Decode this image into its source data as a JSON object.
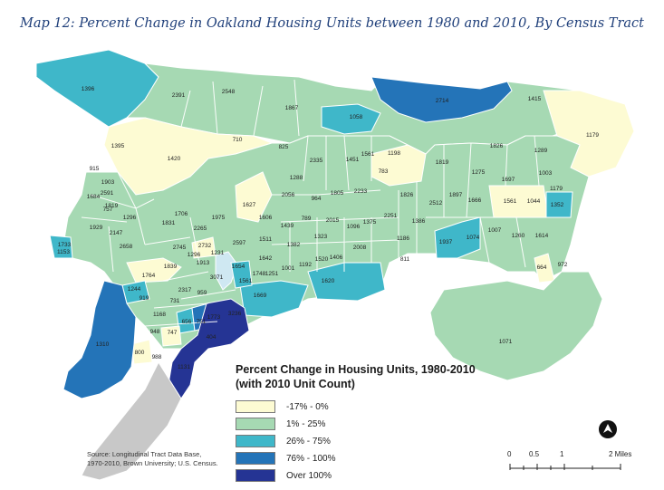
{
  "title": "Map 12: Percent Change in Oakland Housing Units between 1980 and 2010, By Census Tract",
  "legend": {
    "title_line1": "Percent Change in Housing Units, 1980-2010",
    "title_line2": "(with 2010 Unit Count)",
    "items": [
      {
        "label": "-17% - 0%",
        "color": "#fdfbd3"
      },
      {
        "label": "1% - 25%",
        "color": "#a6d9b3"
      },
      {
        "label": "26% - 75%",
        "color": "#3fb7c9"
      },
      {
        "label": "76% - 100%",
        "color": "#2474b8"
      },
      {
        "label": "Over 100%",
        "color": "#253494"
      }
    ]
  },
  "source": {
    "line1": "Source: Longitudinal Tract Data Base,",
    "line2": "1970-2010, Brown University; U.S. Census."
  },
  "scale": {
    "labels": [
      "0",
      "0.5",
      "1",
      "2 Miles"
    ]
  },
  "north_arrow": "north-arrow-icon",
  "colors": {
    "water": "#ffffff",
    "boundary": "#ffffff",
    "no_data": "#c8c8c8"
  },
  "tract_labels": [
    {
      "text": "1396",
      "class": 2
    },
    {
      "text": "2391",
      "class": 1
    },
    {
      "text": "2548",
      "class": 1
    },
    {
      "text": "1867",
      "class": 1
    },
    {
      "text": "1058",
      "class": 2
    },
    {
      "text": "2714",
      "class": 3
    },
    {
      "text": "1415",
      "class": 1
    },
    {
      "text": "1179",
      "class": 0
    },
    {
      "text": "1395",
      "class": 0
    },
    {
      "text": "1420",
      "class": 0
    },
    {
      "text": "710",
      "class": 0
    },
    {
      "text": "825",
      "class": 1
    },
    {
      "text": "2335",
      "class": 1
    },
    {
      "text": "1451",
      "class": 1
    },
    {
      "text": "1561",
      "class": 1
    },
    {
      "text": "1198",
      "class": 1
    },
    {
      "text": "1826",
      "class": 1
    },
    {
      "text": "1289",
      "class": 1
    },
    {
      "text": "915",
      "class": 0
    },
    {
      "text": "1903",
      "class": 1
    },
    {
      "text": "1684",
      "class": 1
    },
    {
      "text": "2591",
      "class": 1
    },
    {
      "text": "757",
      "class": 1
    },
    {
      "text": "1288",
      "class": 1
    },
    {
      "text": "783",
      "class": 0
    },
    {
      "text": "1819",
      "class": 1
    },
    {
      "text": "1275",
      "class": 1
    },
    {
      "text": "1697",
      "class": 1
    },
    {
      "text": "1003",
      "class": 1
    },
    {
      "text": "1179",
      "class": 1
    },
    {
      "text": "1819",
      "class": 1
    },
    {
      "text": "2056",
      "class": 1
    },
    {
      "text": "964",
      "class": 1
    },
    {
      "text": "1805",
      "class": 1
    },
    {
      "text": "2233",
      "class": 1
    },
    {
      "text": "1826",
      "class": 1
    },
    {
      "text": "2512",
      "class": 1
    },
    {
      "text": "1897",
      "class": 1
    },
    {
      "text": "1666",
      "class": 1
    },
    {
      "text": "1561",
      "class": 0
    },
    {
      "text": "1044",
      "class": 0
    },
    {
      "text": "1352",
      "class": 2
    },
    {
      "text": "1929",
      "class": 1
    },
    {
      "text": "1296",
      "class": 1
    },
    {
      "text": "1706",
      "class": 2
    },
    {
      "text": "1975",
      "class": 1
    },
    {
      "text": "1627",
      "class": 0
    },
    {
      "text": "1606",
      "class": 1
    },
    {
      "text": "789",
      "class": 1
    },
    {
      "text": "1439",
      "class": 1
    },
    {
      "text": "2015",
      "class": 1
    },
    {
      "text": "1096",
      "class": 1
    },
    {
      "text": "1375",
      "class": 1
    },
    {
      "text": "2251",
      "class": 1
    },
    {
      "text": "1386",
      "class": 1
    },
    {
      "text": "1733",
      "class": 2
    },
    {
      "text": "1153",
      "class": 1
    },
    {
      "text": "2147",
      "class": 1
    },
    {
      "text": "1831",
      "class": 1
    },
    {
      "text": "2265",
      "class": 1
    },
    {
      "text": "2658",
      "class": 1
    },
    {
      "text": "2745",
      "class": 1
    },
    {
      "text": "2732",
      "class": 0
    },
    {
      "text": "1231",
      "class": 1
    },
    {
      "text": "2597",
      "class": 1
    },
    {
      "text": "1511",
      "class": 1
    },
    {
      "text": "1382",
      "class": 1
    },
    {
      "text": "1323",
      "class": 1
    },
    {
      "text": "2008",
      "class": 1
    },
    {
      "text": "1186",
      "class": 1
    },
    {
      "text": "1937",
      "class": 2
    },
    {
      "text": "1074",
      "class": 2
    },
    {
      "text": "1007",
      "class": 1
    },
    {
      "text": "1260",
      "class": 1
    },
    {
      "text": "1614",
      "class": 1
    },
    {
      "text": "1296",
      "class": 1
    },
    {
      "text": "1913",
      "class": 2
    },
    {
      "text": "1764",
      "class": 0
    },
    {
      "text": "1839",
      "class": 1
    },
    {
      "text": "1642",
      "class": 1
    },
    {
      "text": "1748",
      "class": 1
    },
    {
      "text": "1251",
      "class": 1
    },
    {
      "text": "1001",
      "class": 1
    },
    {
      "text": "1192",
      "class": 1
    },
    {
      "text": "1520",
      "class": 1
    },
    {
      "text": "1406",
      "class": 1
    },
    {
      "text": "811",
      "class": 1
    },
    {
      "text": "664",
      "class": 0
    },
    {
      "text": "972",
      "class": 1
    },
    {
      "text": "3071",
      "class": 1
    },
    {
      "text": "1654",
      "class": 2
    },
    {
      "text": "1561",
      "class": 2
    },
    {
      "text": "1620",
      "class": 2
    },
    {
      "text": "1244",
      "class": 2
    },
    {
      "text": "919",
      "class": 1
    },
    {
      "text": "2317",
      "class": 1
    },
    {
      "text": "959",
      "class": 1
    },
    {
      "text": "1669",
      "class": 2
    },
    {
      "text": "731",
      "class": 1
    },
    {
      "text": "1168",
      "class": 1
    },
    {
      "text": "656",
      "class": 2
    },
    {
      "text": "751",
      "class": 3
    },
    {
      "text": "1773",
      "class": 4
    },
    {
      "text": "3236",
      "class": 4
    },
    {
      "text": "948",
      "class": 1
    },
    {
      "text": "747",
      "class": 0
    },
    {
      "text": "404",
      "class": 4
    },
    {
      "text": "1310",
      "class": 3
    },
    {
      "text": "800",
      "class": 0
    },
    {
      "text": "988",
      "class": 1
    },
    {
      "text": "1071",
      "class": 1
    },
    {
      "text": "1131",
      "class": 4
    }
  ]
}
